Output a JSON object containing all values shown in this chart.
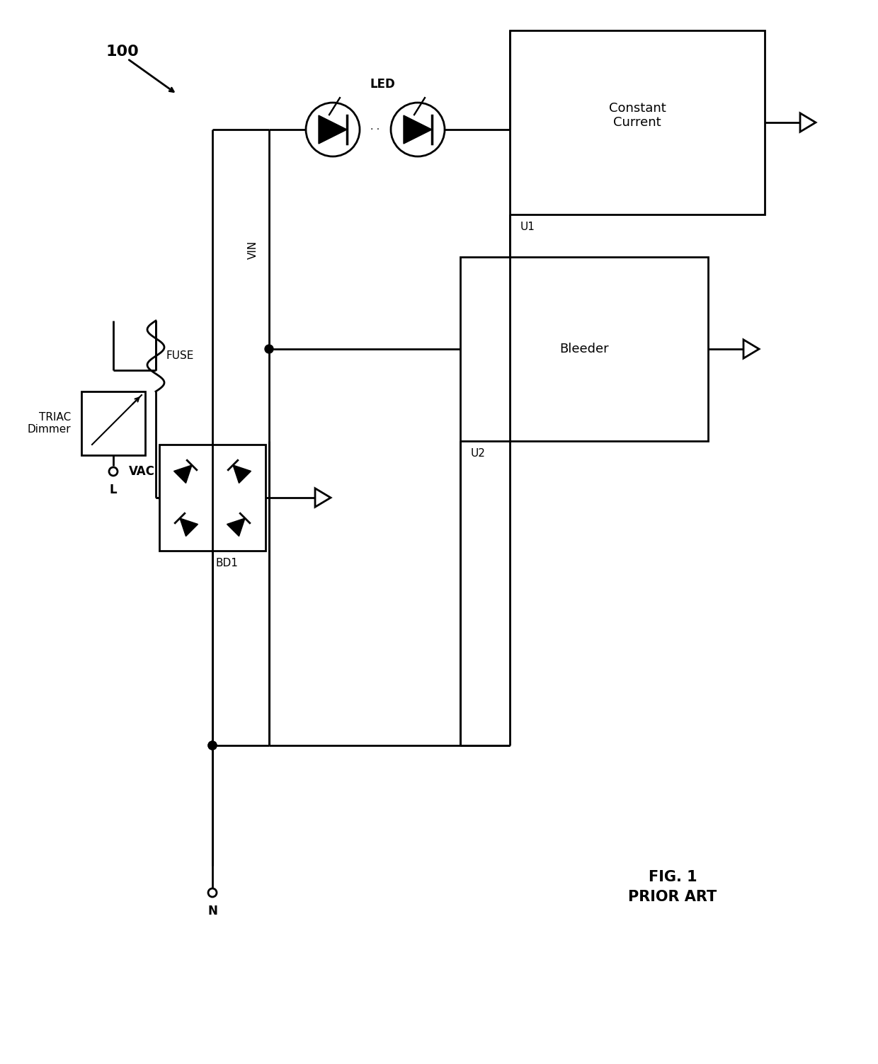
{
  "fig_width": 12.4,
  "fig_height": 15.03,
  "bg_color": "#ffffff",
  "line_color": "#000000",
  "lw": 2.0,
  "title_text": "FIG. 1\nPRIOR ART",
  "label_100": "100",
  "label_LED": "LED",
  "label_VIN": "VIN",
  "label_U1": "U1",
  "label_U2": "U2",
  "label_BD1": "BD1",
  "label_FUSE": "FUSE",
  "label_TRIAC": "TRIAC\nDimmer",
  "label_VAC": "VAC",
  "label_L": "L",
  "label_N": "N",
  "label_CC": "Constant\nCurrent",
  "label_Bleeder": "Bleeder"
}
